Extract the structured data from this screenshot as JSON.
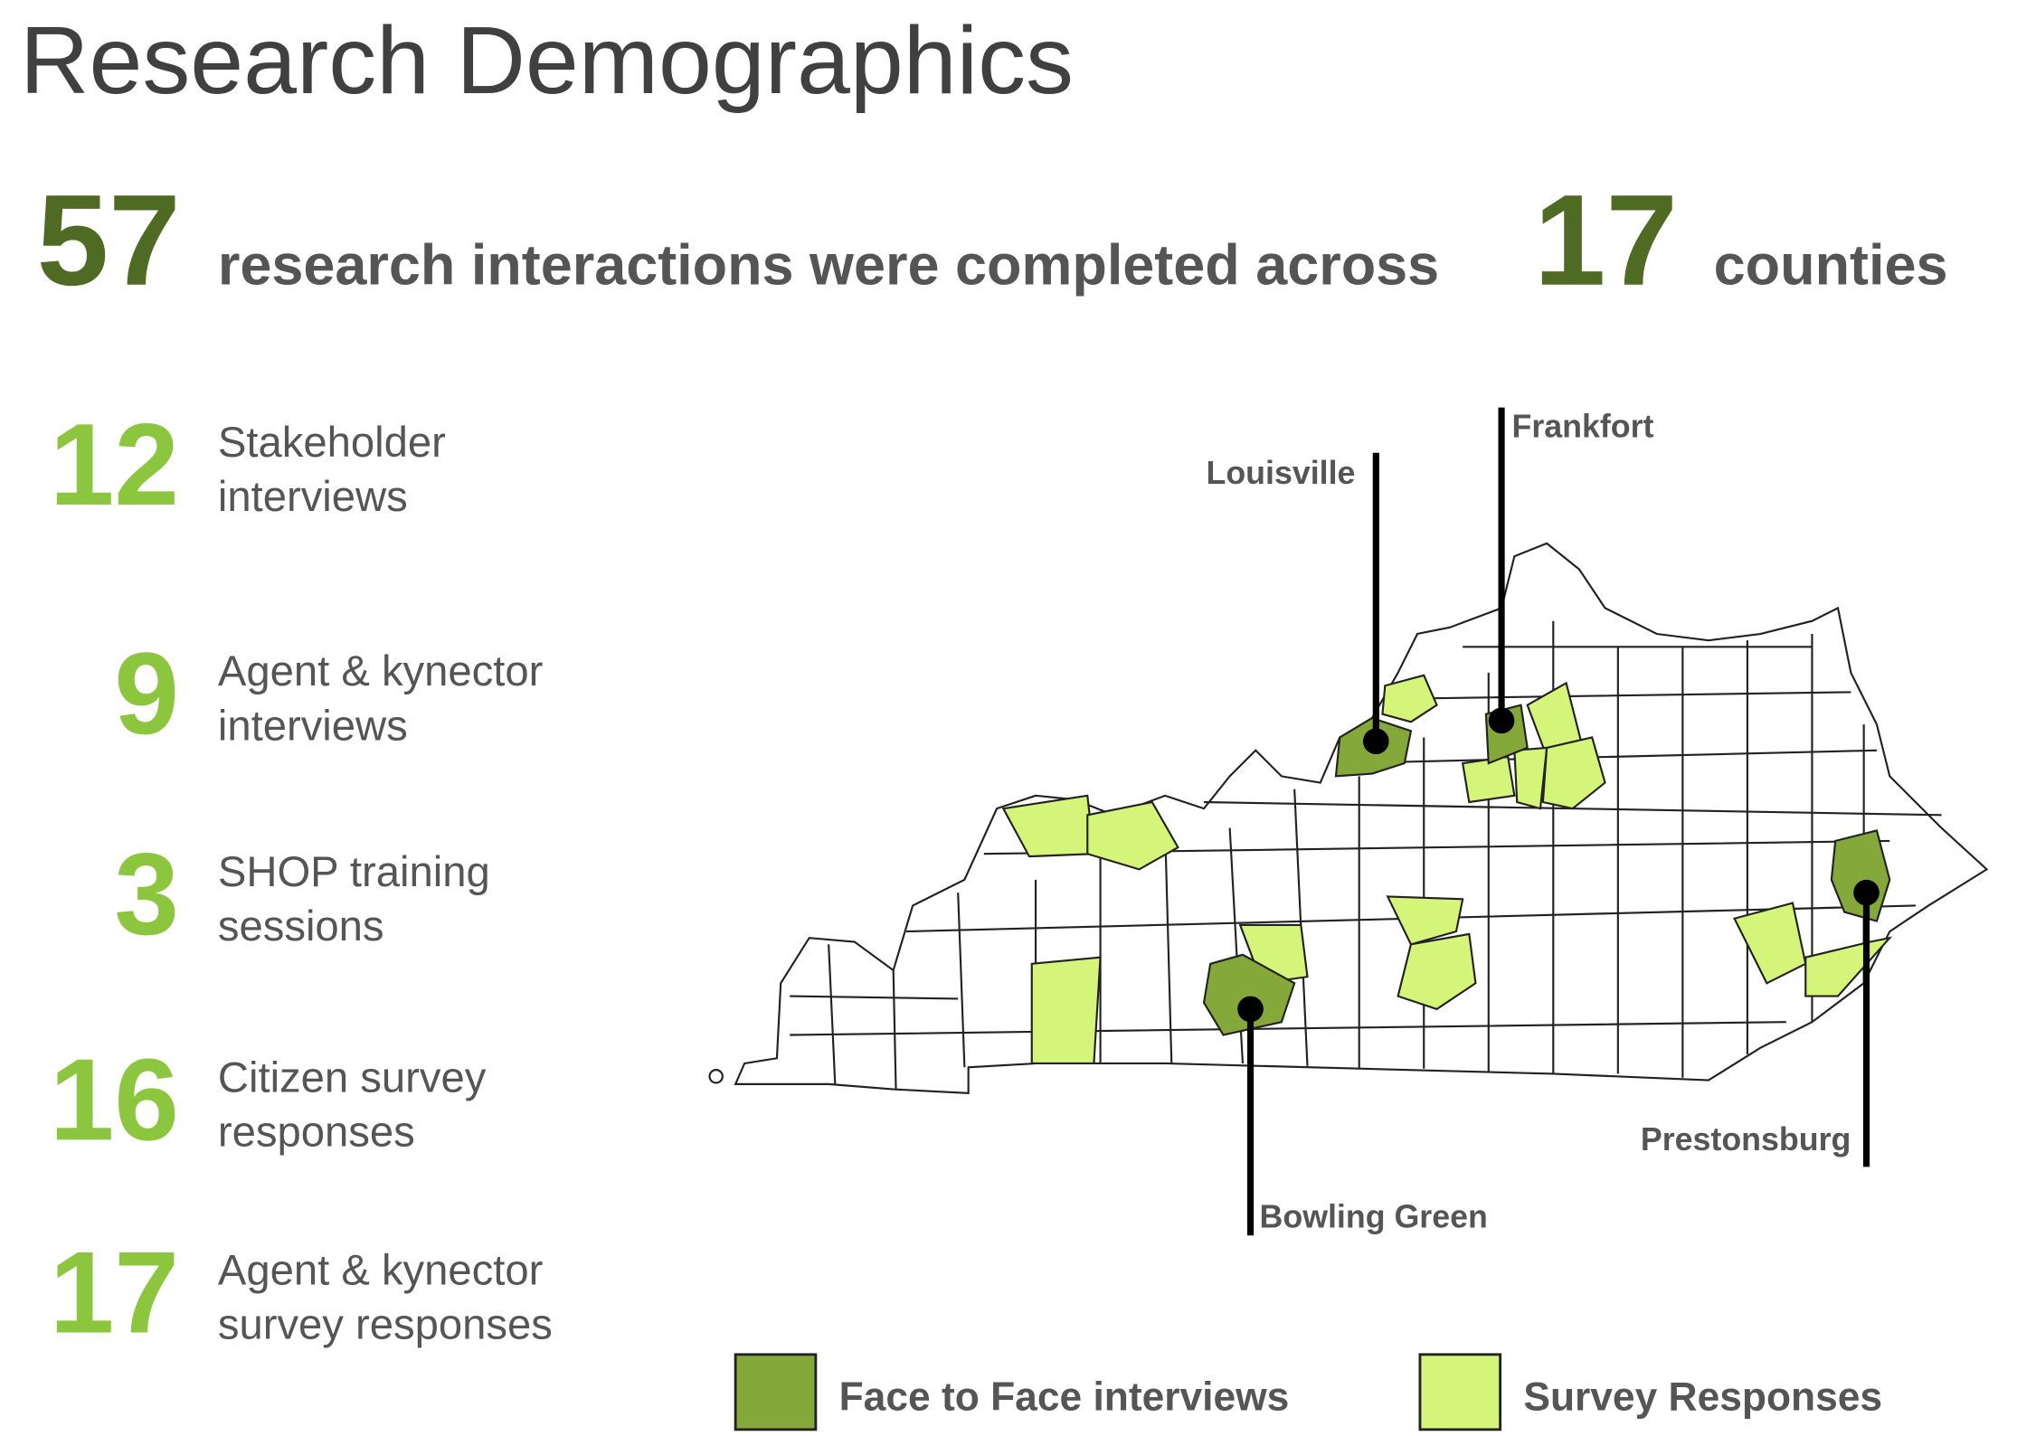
{
  "title": "Research Demographics",
  "headline": {
    "interactions": 57,
    "middle": "research interactions were completed across",
    "counties": 17,
    "end": "counties"
  },
  "stats": [
    {
      "number": 12,
      "lines": [
        "Stakeholder",
        "interviews"
      ]
    },
    {
      "number": 9,
      "lines": [
        "Agent & kynector",
        "interviews"
      ]
    },
    {
      "number": 3,
      "lines": [
        "SHOP training",
        "sessions"
      ]
    },
    {
      "number": 16,
      "lines": [
        "Citizen survey",
        "responses"
      ]
    },
    {
      "number": 17,
      "lines": [
        "Agent & kynector",
        "survey responses"
      ]
    }
  ],
  "map": {
    "labels": [
      "Louisville",
      "Frankfort",
      "Bowling Green",
      "Prestonsburg"
    ]
  },
  "legend": [
    {
      "label": "Face to Face interviews",
      "color": "#84a83a"
    },
    {
      "label": "Survey Responses",
      "color": "#d4f57a"
    }
  ]
}
